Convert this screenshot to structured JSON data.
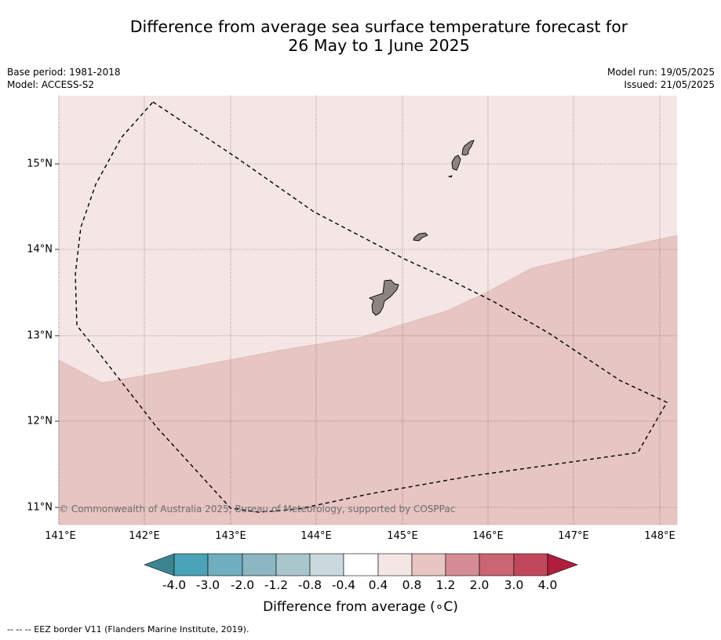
{
  "title_line1": "Difference from average sea surface temperature forecast for",
  "title_line2": "26 May to 1 June 2025",
  "base_period": "Base period: 1981-2018",
  "model": "Model: ACCESS-S2",
  "model_run": "Model run: 19/05/2025",
  "issued": "Issued: 21/05/2025",
  "latitude_labels": [
    "15°N",
    "14°N",
    "13°N",
    "12°N",
    "11°N"
  ],
  "longitude_labels": [
    "141°E",
    "142°E",
    "143°E",
    "144°E",
    "145°E",
    "146°E",
    "147°E",
    "148°E"
  ],
  "colorbar": {
    "title": "Difference from average (∘C)",
    "tick_labels": [
      "-4.0",
      "-3.0",
      "-2.0",
      "-1.2",
      "-0.8",
      "-0.4",
      "0.4",
      "0.8",
      "1.2",
      "2.0",
      "3.0",
      "4.0"
    ],
    "colors": [
      "#3d8491",
      "#4aa3b6",
      "#6eaebe",
      "#8bb7c3",
      "#a9c6cc",
      "#cad9dd",
      "#ffffff",
      "#f4e6e5",
      "#e6c5c2",
      "#d68c95",
      "#ca6571",
      "#c1485a",
      "#b01e3d"
    ]
  },
  "map_colors": {
    "anomaly_0_4_to_0_8": "#f4e6e5",
    "anomaly_0_8_to_1_2": "#e6c5c2",
    "land": "#8c8480"
  },
  "copyright": "© Commonwealth of Australia 2025, Bureau of Meteorology, supported by COSPPac",
  "legend_note": "--  --  -- EEZ border V11 (Flanders Marine Institute, 2019)."
}
